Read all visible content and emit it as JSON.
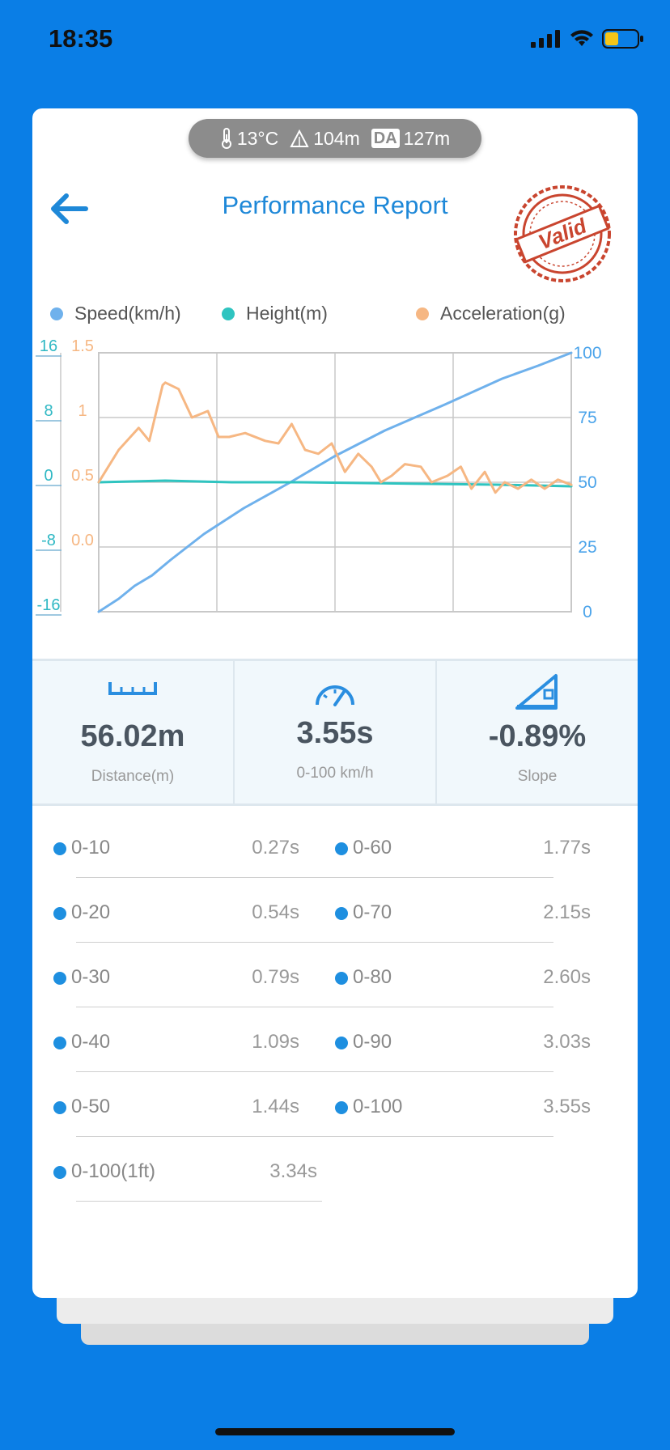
{
  "status": {
    "time": "18:35"
  },
  "weather": {
    "temperature": "13°C",
    "altitude": "104m",
    "da_badge": "DA",
    "density_altitude": "127m"
  },
  "header": {
    "title": "Performance Report",
    "stamp_text": "Valid"
  },
  "legend": [
    {
      "label": "Speed(km/h)",
      "color": "#6fb1ec"
    },
    {
      "label": "Height(m)",
      "color": "#2fc4c0"
    },
    {
      "label": "Acceleration(g)",
      "color": "#f6b783"
    }
  ],
  "chart_data": {
    "type": "line",
    "x_range": [
      0,
      3.55
    ],
    "axes": {
      "height_ticks": [
        "16",
        "8",
        "0",
        "-8",
        "-16"
      ],
      "accel_ticks": [
        "1.5",
        "1",
        "0.5",
        "0.0"
      ],
      "speed_ticks": [
        "100",
        "75",
        "50",
        "25",
        "0"
      ]
    },
    "ranges": {
      "height": [
        -16,
        16
      ],
      "acceleration": [
        -0.5,
        1.5
      ],
      "speed": [
        0,
        100
      ]
    },
    "grid": true,
    "series": [
      {
        "name": "Speed(km/h)",
        "color": "#6fb1ec",
        "axis": "speed",
        "x": [
          0,
          0.15,
          0.27,
          0.4,
          0.54,
          0.79,
          1.09,
          1.3,
          1.44,
          1.77,
          2.15,
          2.6,
          3.03,
          3.3,
          3.55
        ],
        "y": [
          0,
          5,
          10,
          14,
          20,
          30,
          40,
          46,
          50,
          60,
          70,
          80,
          90,
          95,
          100
        ]
      },
      {
        "name": "Height(m)",
        "color": "#2fc4c0",
        "axis": "height",
        "x": [
          0,
          0.5,
          1.0,
          1.5,
          2.0,
          2.5,
          3.0,
          3.55
        ],
        "y": [
          0,
          0.2,
          0,
          0,
          -0.1,
          -0.2,
          -0.3,
          -0.5
        ]
      },
      {
        "name": "Acceleration(g)",
        "color": "#f6b783",
        "axis": "acceleration",
        "x": [
          0,
          0.15,
          0.3,
          0.38,
          0.48,
          0.5,
          0.6,
          0.7,
          0.82,
          0.9,
          0.98,
          1.1,
          1.25,
          1.35,
          1.45,
          1.55,
          1.65,
          1.75,
          1.85,
          1.95,
          2.05,
          2.12,
          2.2,
          2.3,
          2.42,
          2.5,
          2.62,
          2.72,
          2.8,
          2.9,
          2.98,
          3.05,
          3.15,
          3.25,
          3.35,
          3.45,
          3.55
        ],
        "y": [
          0.5,
          0.75,
          0.92,
          0.82,
          1.25,
          1.27,
          1.22,
          1.0,
          1.05,
          0.85,
          0.85,
          0.88,
          0.82,
          0.8,
          0.95,
          0.75,
          0.72,
          0.8,
          0.58,
          0.72,
          0.62,
          0.5,
          0.55,
          0.64,
          0.62,
          0.5,
          0.55,
          0.62,
          0.45,
          0.58,
          0.42,
          0.5,
          0.45,
          0.52,
          0.45,
          0.52,
          0.48
        ]
      }
    ]
  },
  "metrics": [
    {
      "value": "56.02m",
      "label": "Distance(m)"
    },
    {
      "value": "3.55s",
      "label": "0-100 km/h"
    },
    {
      "value": "-0.89%",
      "label": "Slope"
    }
  ],
  "splits_left": [
    {
      "label": "0-10",
      "time": "0.27s"
    },
    {
      "label": "0-20",
      "time": "0.54s"
    },
    {
      "label": "0-30",
      "time": "0.79s"
    },
    {
      "label": "0-40",
      "time": "1.09s"
    },
    {
      "label": "0-50",
      "time": "1.44s"
    },
    {
      "label": "0-100(1ft)",
      "time": "3.34s"
    }
  ],
  "splits_right": [
    {
      "label": "0-60",
      "time": "1.77s"
    },
    {
      "label": "0-70",
      "time": "2.15s"
    },
    {
      "label": "0-80",
      "time": "2.60s"
    },
    {
      "label": "0-90",
      "time": "3.03s"
    },
    {
      "label": "0-100",
      "time": "3.55s"
    }
  ],
  "icons": {
    "back": "back-arrow-icon",
    "distance": "ruler-icon",
    "speed": "speedometer-icon",
    "slope": "slope-icon",
    "temperature": "thermometer-icon",
    "altitude": "mountain-icon"
  }
}
